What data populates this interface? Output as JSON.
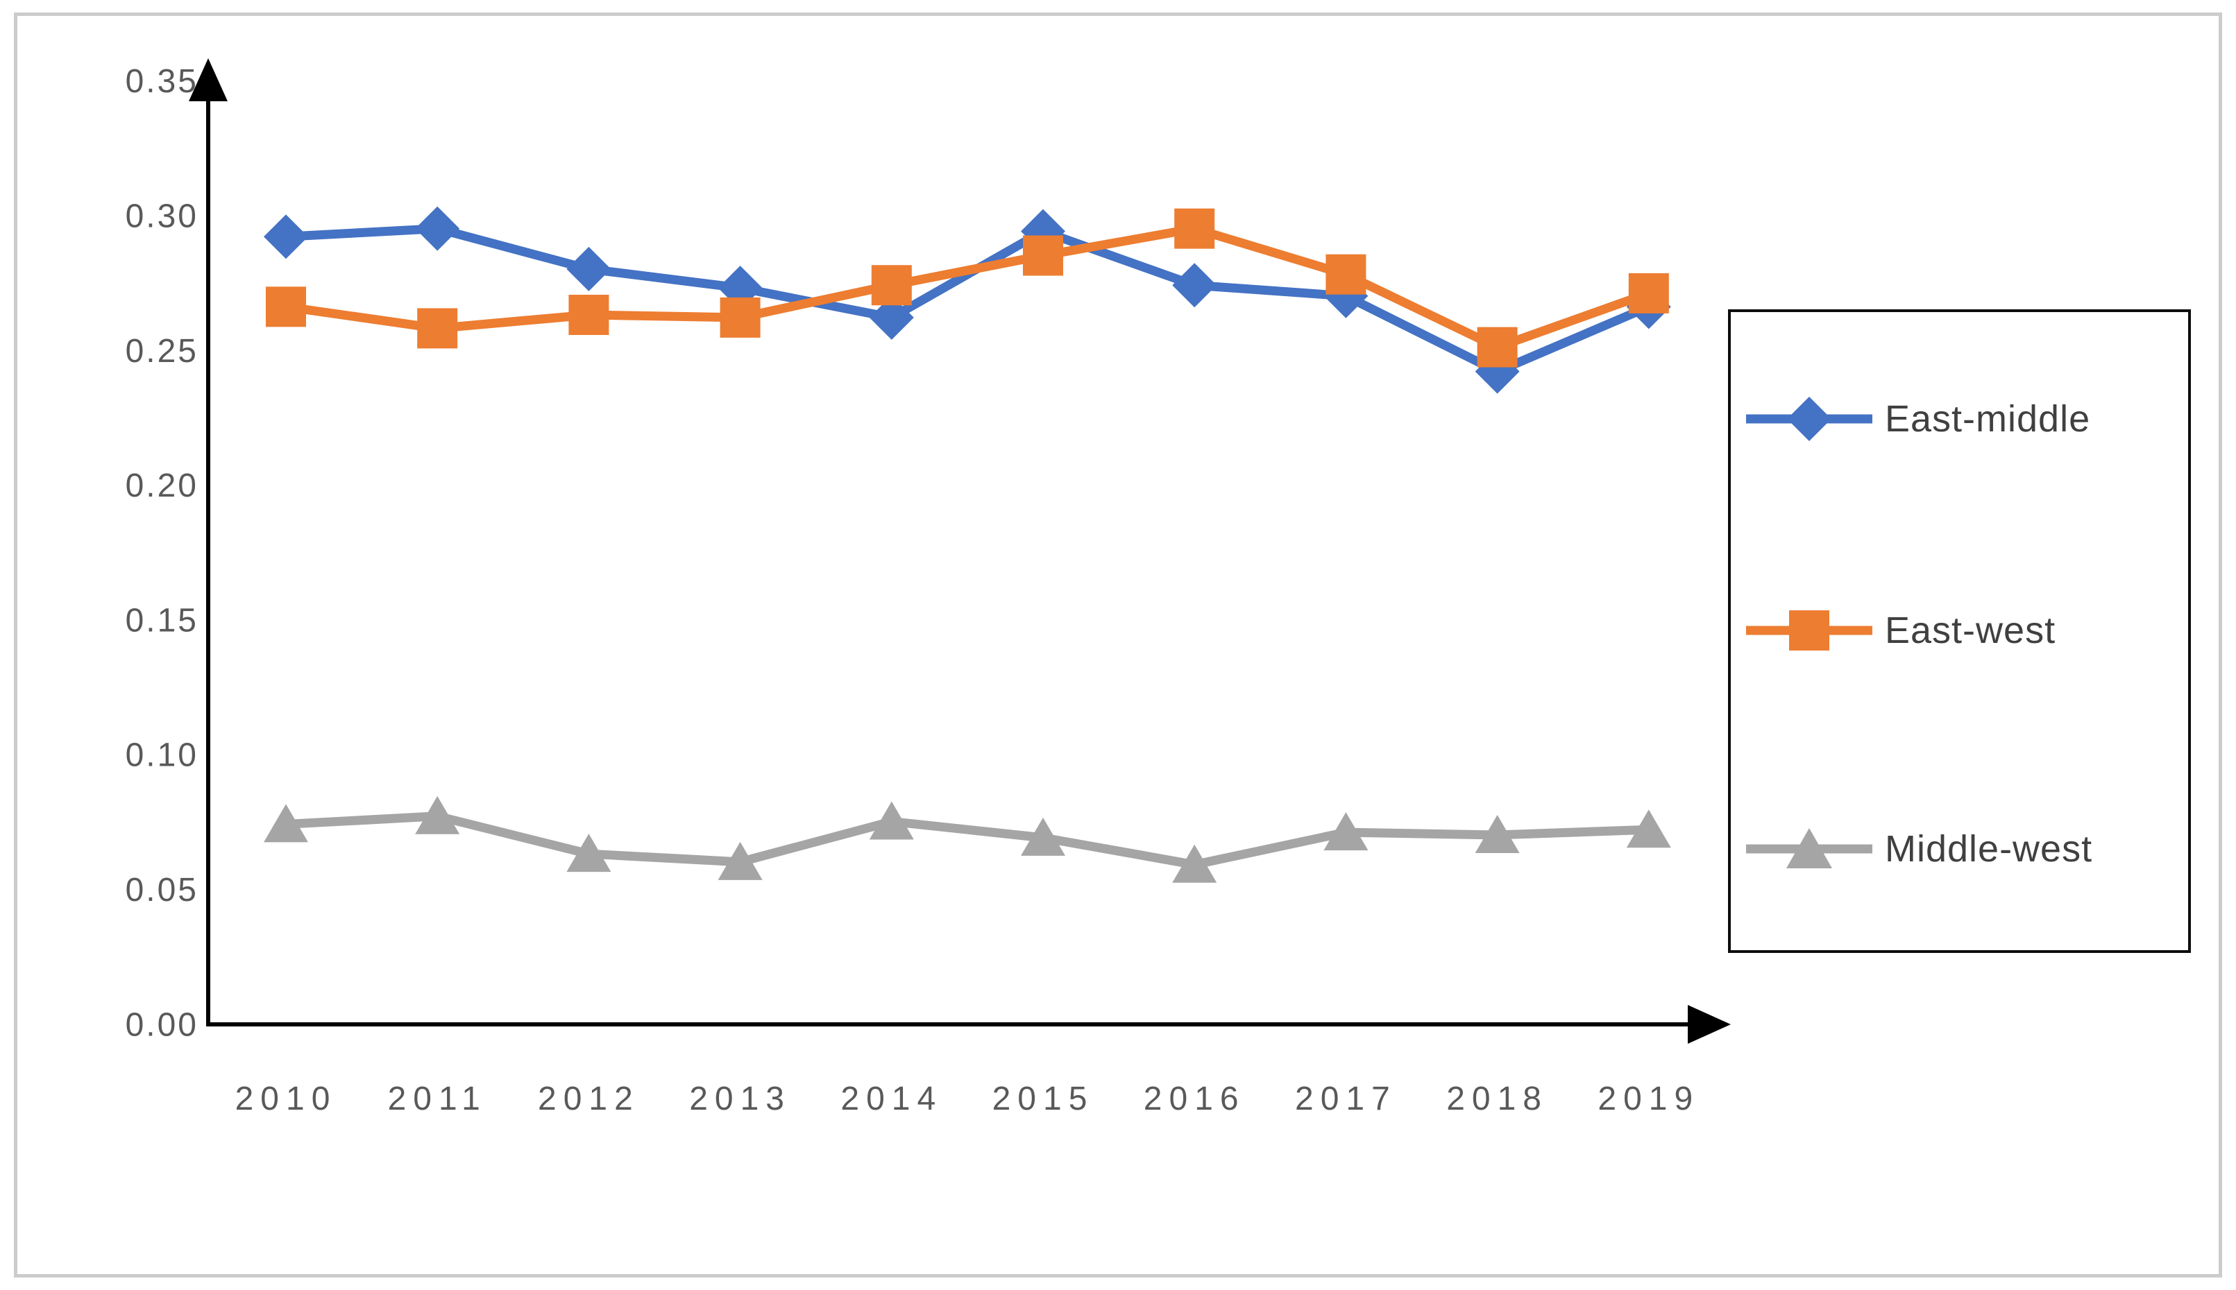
{
  "chart_data": {
    "type": "line",
    "title": "",
    "xlabel": "",
    "ylabel": "",
    "categories": [
      "2010",
      "2011",
      "2012",
      "2013",
      "2014",
      "2015",
      "2016",
      "2017",
      "2018",
      "2019"
    ],
    "series": [
      {
        "name": "East-middle",
        "color": "#4472C4",
        "marker": "diamond",
        "values": [
          0.292,
          0.295,
          0.28,
          0.273,
          0.262,
          0.294,
          0.274,
          0.27,
          0.242,
          0.266
        ]
      },
      {
        "name": "East-west",
        "color": "#ED7D31",
        "marker": "square",
        "values": [
          0.266,
          0.258,
          0.263,
          0.262,
          0.274,
          0.285,
          0.295,
          0.278,
          0.251,
          0.271
        ]
      },
      {
        "name": "Middle-west",
        "color": "#A5A5A5",
        "marker": "triangle",
        "values": [
          0.074,
          0.077,
          0.063,
          0.06,
          0.075,
          0.069,
          0.059,
          0.071,
          0.07,
          0.072
        ]
      }
    ],
    "ylim": [
      0,
      0.35
    ],
    "ytick_step": 0.05,
    "y_ticks": [
      "0.35",
      "0.30",
      "0.25",
      "0.20",
      "0.15",
      "0.10",
      "0.05",
      "0.00"
    ],
    "grid": false,
    "legend_position": "right",
    "axis_arrows": true,
    "colors": {
      "axis": "#000000",
      "tick_label": "#595959",
      "legend_text": "#404040",
      "legend_border": "#0d0d0d",
      "outer_frame": "#cccccc"
    }
  }
}
